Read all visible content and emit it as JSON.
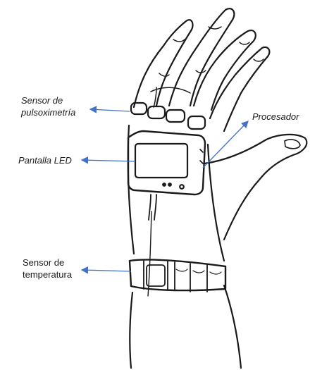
{
  "diagram": {
    "labels": {
      "pulse_sensor": [
        "Sensor de",
        "pulsoximetría"
      ],
      "display": "Pantalla LED",
      "processor": "Procesador",
      "temperature_sensor": [
        "Sensor de",
        "temperatura"
      ]
    },
    "colors": {
      "ink": "#1a1a1a",
      "arrow": "#4472c4",
      "background": "#ffffff"
    }
  }
}
